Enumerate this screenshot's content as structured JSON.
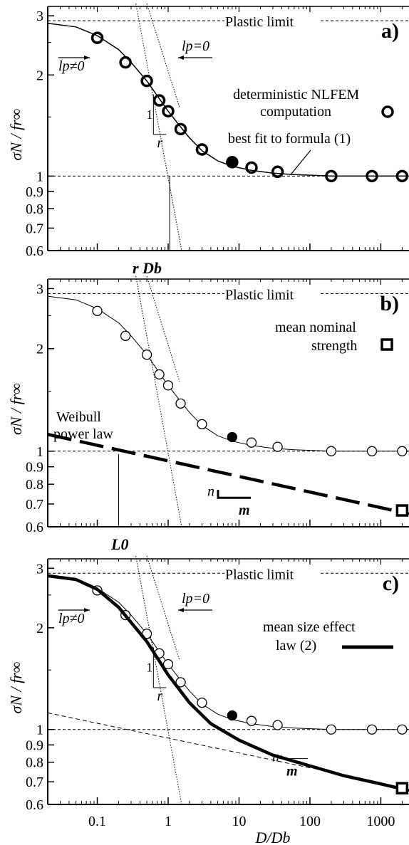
{
  "chart_data": [
    {
      "type": "line",
      "panel_label": "a)",
      "x_scale": "log",
      "y_scale": "log",
      "ylim": [
        0.6,
        3.2
      ],
      "xlim": [
        0.02,
        2500
      ],
      "ylabel": "σN / fr∞",
      "yticks": [
        "0.6",
        "0.7",
        "0.8",
        "0.9",
        "1",
        "2",
        "3"
      ],
      "annotations": {
        "plastic_limit": "Plastic limit",
        "lp_zero": "lp=0",
        "lp_nonzero": "lp≠0",
        "legend_line1": "deterministic NLFEM",
        "legend_line2": "computation",
        "fit_label": "best fit to formula  (1)",
        "slope_one": "1",
        "slope_r": "r",
        "below_axis": "r Db"
      },
      "series": [
        {
          "name": "deterministic NLFEM computation",
          "marker": "circle",
          "x": [
            0.1,
            0.25,
            0.5,
            0.75,
            1,
            1.5,
            3,
            8,
            15,
            35,
            200,
            750,
            2000
          ],
          "y": [
            2.58,
            2.18,
            1.92,
            1.68,
            1.56,
            1.38,
            1.2,
            1.1,
            1.06,
            1.03,
            1.0,
            1.0,
            1.0
          ],
          "filled_index": 7
        },
        {
          "name": "best fit to formula (1)",
          "style": "solid",
          "x": [
            0.02,
            0.05,
            0.1,
            0.2,
            0.3,
            0.5,
            0.75,
            1,
            1.5,
            2,
            3,
            5,
            8,
            15,
            30,
            60,
            200,
            2500
          ],
          "y": [
            2.85,
            2.78,
            2.62,
            2.38,
            2.18,
            1.92,
            1.7,
            1.56,
            1.4,
            1.3,
            1.19,
            1.11,
            1.07,
            1.04,
            1.02,
            1.01,
            1.0,
            1.0
          ]
        }
      ]
    },
    {
      "type": "line",
      "panel_label": "b)",
      "x_scale": "log",
      "y_scale": "log",
      "ylim": [
        0.6,
        3.2
      ],
      "xlim": [
        0.02,
        2500
      ],
      "ylabel": "σN / fr∞",
      "yticks": [
        "0.6",
        "0.7",
        "0.8",
        "0.9",
        "1",
        "2",
        "3"
      ],
      "annotations": {
        "plastic_limit": "Plastic limit",
        "legend_line1": "mean nominal",
        "legend_line2": "strength",
        "weibull_line1": "Weibull",
        "weibull_line2": "power law",
        "slope_n": "n",
        "slope_m": "m",
        "below_axis": "L0"
      },
      "series": [
        {
          "name": "deterministic NLFEM computation",
          "marker": "circle",
          "x": [
            0.1,
            0.25,
            0.5,
            0.75,
            1,
            1.5,
            3,
            8,
            15,
            35,
            200,
            750,
            2000
          ],
          "y": [
            2.58,
            2.18,
            1.92,
            1.68,
            1.56,
            1.38,
            1.2,
            1.1,
            1.06,
            1.03,
            1.0,
            1.0,
            1.0
          ],
          "filled_index": 7
        },
        {
          "name": "Weibull power law",
          "style": "dashed-thick",
          "x": [
            0.02,
            2500
          ],
          "y": [
            1.12,
            0.655
          ]
        },
        {
          "name": "mean nominal strength",
          "marker": "square",
          "x": [
            2000
          ],
          "y": [
            0.67
          ]
        }
      ]
    },
    {
      "type": "line",
      "panel_label": "c)",
      "x_scale": "log",
      "y_scale": "log",
      "ylim": [
        0.6,
        3.2
      ],
      "xlim": [
        0.02,
        2500
      ],
      "ylabel": "σN / fr∞",
      "xlabel": "D/Db",
      "yticks": [
        "0.6",
        "0.7",
        "0.8",
        "0.9",
        "1",
        "2",
        "3"
      ],
      "xticks": [
        "0.1",
        "1",
        "10",
        "100",
        "1000"
      ],
      "annotations": {
        "plastic_limit": "Plastic limit",
        "lp_zero": "lp=0",
        "lp_nonzero": "lp≠0",
        "legend_line1": "mean size effect",
        "legend_line2": "law (2)",
        "slope_one": "1",
        "slope_r": "r",
        "slope_n": "n",
        "slope_m": "m"
      },
      "series": [
        {
          "name": "deterministic NLFEM computation",
          "marker": "circle",
          "x": [
            0.1,
            0.25,
            0.5,
            0.75,
            1,
            1.5,
            3,
            8,
            15,
            35,
            200,
            750,
            2000
          ],
          "y": [
            2.58,
            2.18,
            1.92,
            1.68,
            1.56,
            1.38,
            1.2,
            1.1,
            1.06,
            1.03,
            1.0,
            1.0,
            1.0
          ],
          "filled_index": 7
        },
        {
          "name": "mean size effect law (2)",
          "style": "thick",
          "x": [
            0.02,
            0.05,
            0.1,
            0.2,
            0.5,
            1,
            2,
            4,
            10,
            30,
            100,
            300,
            1000,
            2500
          ],
          "y": [
            2.85,
            2.78,
            2.6,
            2.3,
            1.82,
            1.45,
            1.2,
            1.04,
            0.93,
            0.84,
            0.78,
            0.73,
            0.69,
            0.66
          ]
        },
        {
          "name": "mean nominal strength",
          "marker": "square",
          "x": [
            2000
          ],
          "y": [
            0.67
          ]
        }
      ]
    }
  ]
}
